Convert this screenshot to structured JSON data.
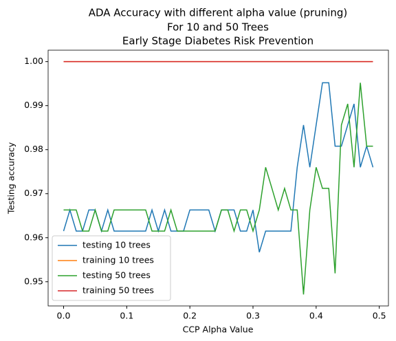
{
  "chart_data": {
    "type": "line",
    "title": "ADA Accuracy with different alpha value (pruning)",
    "subtitle": [
      "For 10 and 50 Trees",
      "Early Stage Diabetes Risk Prevention"
    ],
    "xlabel": "CCP Alpha Value",
    "ylabel": "Testing accuracy",
    "x": [
      0,
      0.01,
      0.02,
      0.03,
      0.04,
      0.05,
      0.06,
      0.07,
      0.08,
      0.09,
      0.1,
      0.11,
      0.12,
      0.13,
      0.14,
      0.15,
      0.16,
      0.17,
      0.18,
      0.19,
      0.2,
      0.21,
      0.22,
      0.23,
      0.24,
      0.25,
      0.26,
      0.27,
      0.28,
      0.29,
      0.3,
      0.31,
      0.32,
      0.33,
      0.34,
      0.35,
      0.36,
      0.37,
      0.38,
      0.39,
      0.4,
      0.41,
      0.42,
      0.43,
      0.44,
      0.45,
      0.46,
      0.47,
      0.48,
      0.49
    ],
    "series": [
      {
        "name": "testing 10 trees",
        "color": "#1f77b4",
        "values": [
          0.9615,
          0.9663,
          0.9615,
          0.9615,
          0.9663,
          0.9663,
          0.9615,
          0.9663,
          0.9615,
          0.9615,
          0.9615,
          0.9615,
          0.9615,
          0.9615,
          0.9663,
          0.9615,
          0.9663,
          0.9615,
          0.9615,
          0.9615,
          0.9663,
          0.9663,
          0.9663,
          0.9663,
          0.9615,
          0.9663,
          0.9663,
          0.9663,
          0.9615,
          0.9615,
          0.9663,
          0.9567,
          0.9615,
          0.9615,
          0.9615,
          0.9615,
          0.9615,
          0.976,
          0.9856,
          0.976,
          0.9856,
          0.9952,
          0.9952,
          0.9808,
          0.9808,
          0.9856,
          0.9904,
          0.976,
          0.9808,
          0.976
        ]
      },
      {
        "name": "training 10 trees",
        "color": "#ff7f0e",
        "values": [
          1,
          1,
          1,
          1,
          1,
          1,
          1,
          1,
          1,
          1,
          1,
          1,
          1,
          1,
          1,
          1,
          1,
          1,
          1,
          1,
          1,
          1,
          1,
          1,
          1,
          1,
          1,
          1,
          1,
          1,
          1,
          1,
          1,
          1,
          1,
          1,
          1,
          1,
          1,
          1,
          1,
          1,
          1,
          1,
          1,
          1,
          1,
          1,
          1,
          1
        ]
      },
      {
        "name": "testing 50 trees",
        "color": "#2ca02c",
        "values": [
          0.9663,
          0.9663,
          0.9663,
          0.9615,
          0.9615,
          0.9663,
          0.9615,
          0.9615,
          0.9663,
          0.9663,
          0.9663,
          0.9663,
          0.9663,
          0.9663,
          0.9615,
          0.9615,
          0.9615,
          0.9663,
          0.9615,
          0.9615,
          0.9615,
          0.9615,
          0.9615,
          0.9615,
          0.9615,
          0.9663,
          0.9663,
          0.9615,
          0.9663,
          0.9663,
          0.9615,
          0.9663,
          0.976,
          0.9712,
          0.9663,
          0.9712,
          0.9663,
          0.9663,
          0.9471,
          0.9663,
          0.976,
          0.9712,
          0.9712,
          0.9519,
          0.9856,
          0.9904,
          0.976,
          0.9952,
          0.9808,
          0.9808
        ]
      },
      {
        "name": "training 50 trees",
        "color": "#d62728",
        "values": [
          1,
          1,
          1,
          1,
          1,
          1,
          1,
          1,
          1,
          1,
          1,
          1,
          1,
          1,
          1,
          1,
          1,
          1,
          1,
          1,
          1,
          1,
          1,
          1,
          1,
          1,
          1,
          1,
          1,
          1,
          1,
          1,
          1,
          1,
          1,
          1,
          1,
          1,
          1,
          1,
          1,
          1,
          1,
          1,
          1,
          1,
          1,
          1,
          1,
          1
        ]
      }
    ],
    "xlim": [
      -0.0245,
      0.5145
    ],
    "xticks": [
      {
        "value": 0,
        "label": "0.0"
      },
      0.1,
      0.2,
      0.3,
      0.4,
      0.5
    ],
    "ylim": [
      0.9445,
      1.0026
    ],
    "yticks": [
      0.95,
      0.96,
      0.97,
      0.98,
      0.99,
      {
        "value": 1,
        "label": "1.00"
      }
    ],
    "legend": "lower left"
  }
}
